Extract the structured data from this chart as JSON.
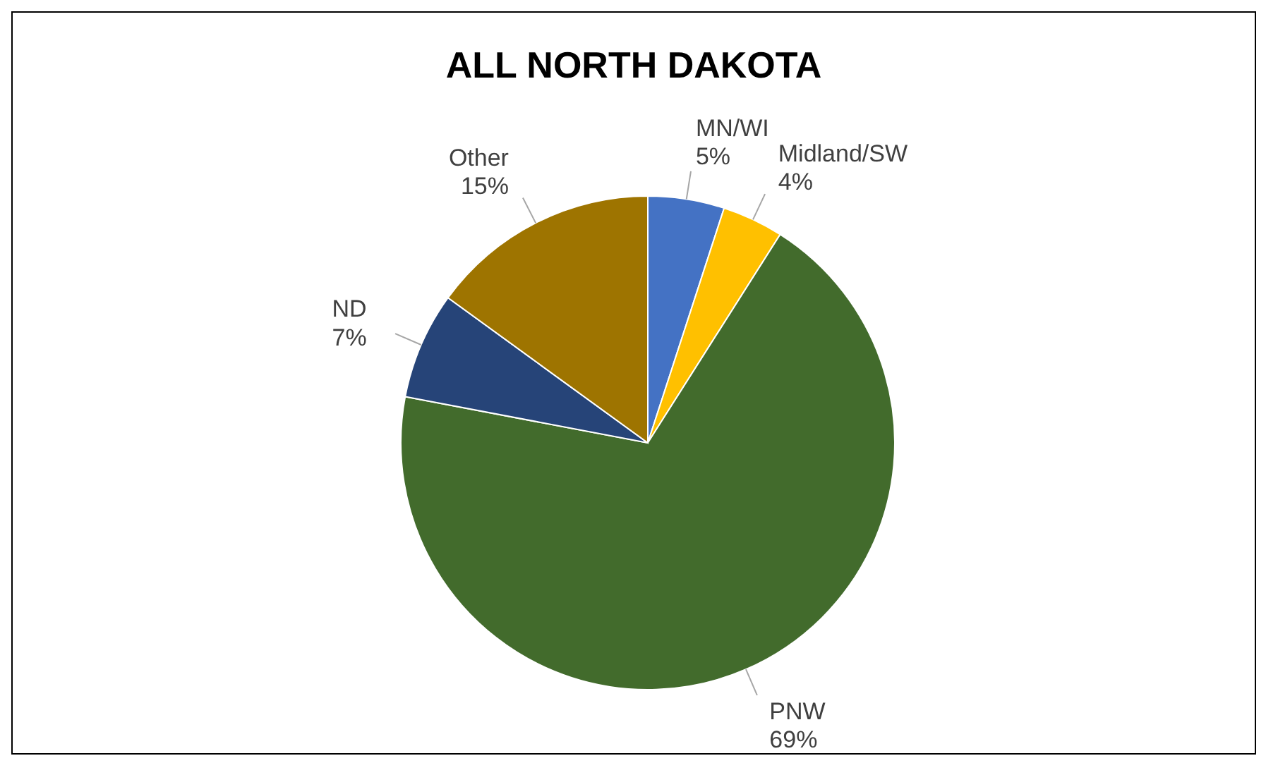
{
  "chart_data": {
    "type": "pie",
    "title": "ALL NORTH DAKOTA",
    "categories": [
      "MN/WI",
      "Midland/SW",
      "PNW",
      "ND",
      "Other"
    ],
    "values": [
      5,
      4,
      69,
      7,
      15
    ],
    "value_labels": [
      "5%",
      "4%",
      "69%",
      "7%",
      "15%"
    ],
    "colors": [
      "#4472c4",
      "#ffc000",
      "#426b2c",
      "#264478",
      "#9e7400"
    ],
    "legend": false
  }
}
